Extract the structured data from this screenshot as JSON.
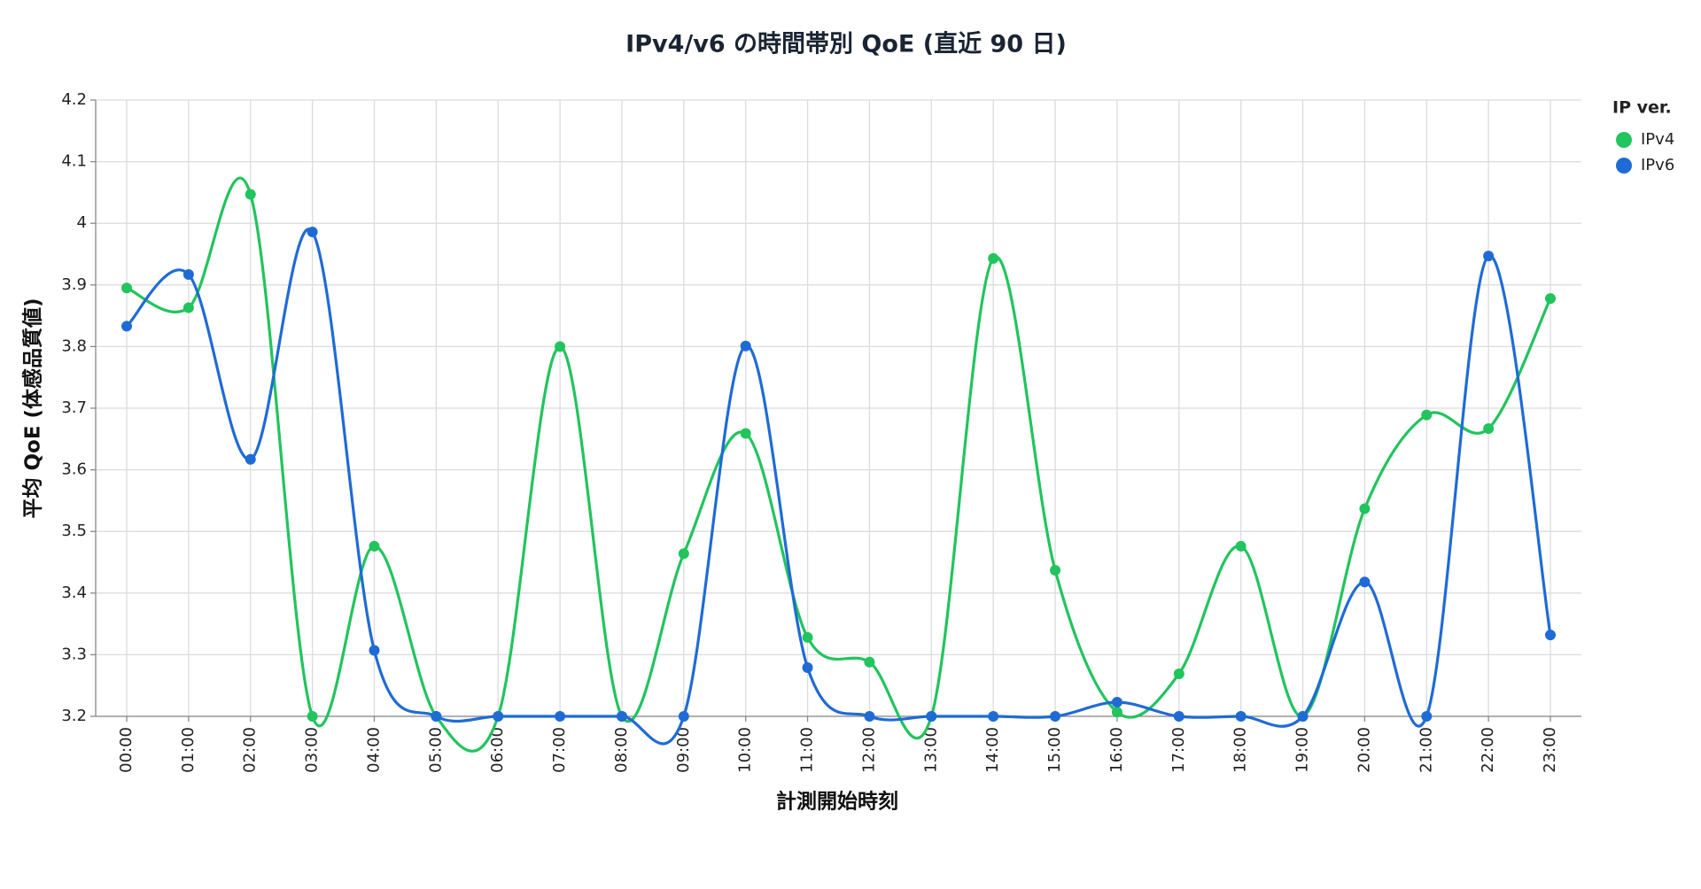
{
  "chart_data": {
    "type": "line",
    "title": "IPv4/v6 の時間帯別 QoE (直近 90 日)",
    "x_label": "計測開始時刻",
    "y_label": "平均 QoE (体感品質値)",
    "categories": [
      "00:00",
      "01:00",
      "02:00",
      "03:00",
      "04:00",
      "05:00",
      "06:00",
      "07:00",
      "08:00",
      "09:00",
      "10:00",
      "11:00",
      "12:00",
      "13:00",
      "14:00",
      "15:00",
      "16:00",
      "17:00",
      "18:00",
      "19:00",
      "20:00",
      "21:00",
      "22:00",
      "23:00"
    ],
    "series": [
      {
        "name": "IPv4",
        "color": "#21c45d",
        "values": [
          3.895,
          3.863,
          4.047,
          3.2,
          3.476,
          3.2,
          3.2,
          3.8,
          3.2,
          3.464,
          3.659,
          3.328,
          3.288,
          3.2,
          3.943,
          3.437,
          3.207,
          3.269,
          3.476,
          3.2,
          3.537,
          3.689,
          3.667,
          3.878
        ]
      },
      {
        "name": "IPv6",
        "color": "#1f6bd6",
        "values": [
          3.833,
          3.917,
          3.617,
          3.986,
          3.307,
          3.2,
          3.2,
          3.2,
          3.2,
          3.2,
          3.801,
          3.279,
          3.2,
          3.2,
          3.2,
          3.2,
          3.223,
          3.2,
          3.2,
          3.2,
          3.418,
          3.2,
          3.947,
          3.332
        ]
      }
    ],
    "legend_title": "IP ver.",
    "legend": "top-right",
    "ylim": [
      3.2,
      4.2
    ],
    "yticks": [
      3.2,
      3.3,
      3.4,
      3.5,
      3.6,
      3.7,
      3.8,
      3.9,
      4,
      4.1,
      4.2
    ],
    "grid": true,
    "smooth": true
  }
}
